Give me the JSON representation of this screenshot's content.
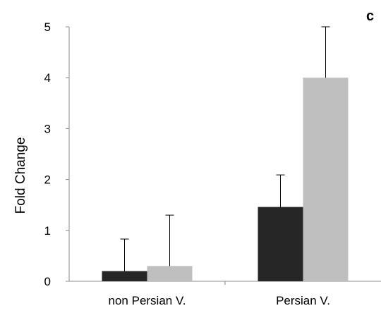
{
  "chart_data": {
    "type": "bar",
    "panel_label": "c",
    "title": "",
    "xlabel": "",
    "ylabel": "Fold Change",
    "ylim": [
      0,
      5
    ],
    "yticks": [
      0,
      1,
      2,
      3,
      4,
      5
    ],
    "categories": [
      "non Persian V.",
      "Persian V."
    ],
    "series": [
      {
        "values": [
          0.2,
          1.46
        ],
        "error": [
          0.63,
          0.63
        ],
        "color": "#262626"
      },
      {
        "values": [
          0.3,
          4.0
        ],
        "error": [
          1.0,
          1.0
        ],
        "color": "#bfbfbf"
      }
    ],
    "grid": false,
    "legend": "none"
  }
}
